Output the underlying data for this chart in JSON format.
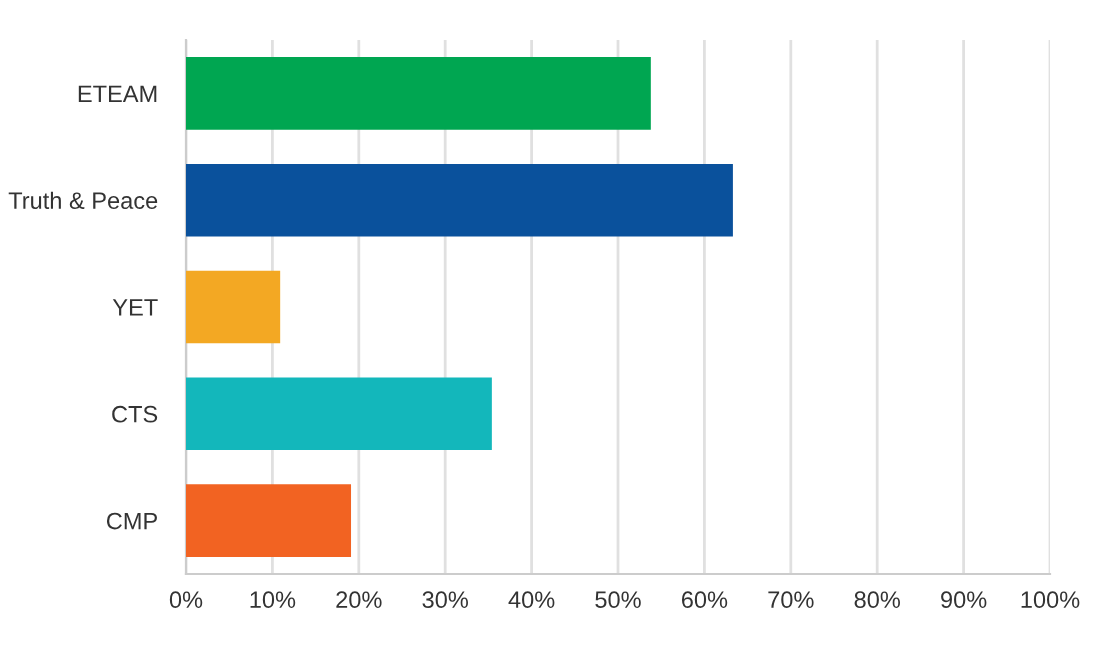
{
  "chart_data": {
    "type": "bar",
    "orientation": "horizontal",
    "categories": [
      "ETEAM",
      "Truth & Peace",
      "YET",
      "CTS",
      "CMP"
    ],
    "values": [
      53.8,
      63.3,
      10.9,
      35.4,
      19.1
    ],
    "colors": [
      "#00a651",
      "#0a519c",
      "#f3a823",
      "#13b7bb",
      "#f26322"
    ],
    "xlim": [
      0,
      100
    ],
    "xticks": [
      {
        "value": 0,
        "label": "0%"
      },
      {
        "value": 10,
        "label": "10%"
      },
      {
        "value": 20,
        "label": "20%"
      },
      {
        "value": 30,
        "label": "30%"
      },
      {
        "value": 40,
        "label": "40%"
      },
      {
        "value": 50,
        "label": "50%"
      },
      {
        "value": 60,
        "label": "60%"
      },
      {
        "value": 70,
        "label": "70%"
      },
      {
        "value": 80,
        "label": "80%"
      },
      {
        "value": 90,
        "label": "90%"
      },
      {
        "value": 100,
        "label": "100%"
      }
    ],
    "grid": "x"
  }
}
